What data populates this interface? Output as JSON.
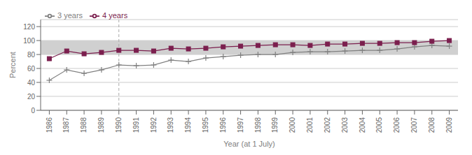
{
  "chart_data": {
    "type": "line",
    "x_label": "Year (at 1 July)",
    "y_label": "Percent",
    "x": [
      1986,
      1987,
      1988,
      1989,
      1990,
      1991,
      1992,
      1993,
      1994,
      1995,
      1996,
      1997,
      1998,
      1999,
      2000,
      2001,
      2002,
      2003,
      2004,
      2005,
      2006,
      2007,
      2008,
      2009
    ],
    "series": [
      {
        "name": "3 years",
        "color": "#808080",
        "marker": "plus",
        "values": [
          43,
          58,
          53,
          58,
          65,
          64,
          65,
          72,
          70,
          75,
          77,
          79,
          80,
          80,
          83,
          84,
          84,
          85,
          86,
          86,
          88,
          91,
          93,
          92
        ]
      },
      {
        "name": "4 years",
        "color": "#7b1f4e",
        "marker": "square",
        "values": [
          74,
          85,
          81,
          83,
          86,
          86,
          85,
          89,
          88,
          89,
          91,
          92,
          93,
          94,
          94,
          93,
          95,
          95,
          96,
          96,
          97,
          97,
          99,
          100
        ]
      }
    ],
    "xlim": [
      1985.5,
      2009.5
    ],
    "xticks": [
      1986,
      1987,
      1988,
      1989,
      1990,
      1991,
      1992,
      1993,
      1994,
      1995,
      1996,
      1997,
      1998,
      1999,
      2000,
      2001,
      2002,
      2003,
      2004,
      2005,
      2006,
      2007,
      2008,
      2009
    ],
    "ylim": [
      0,
      130
    ],
    "yticks": [
      0,
      20,
      40,
      60,
      80,
      100,
      120
    ],
    "grid": true,
    "legend": "upper left",
    "band": {
      "y1": 80,
      "y2": 100,
      "color": "#d0d0d0"
    },
    "vline": {
      "x": 1990,
      "color": "#aaaaaa",
      "line_style": "dashed"
    }
  }
}
